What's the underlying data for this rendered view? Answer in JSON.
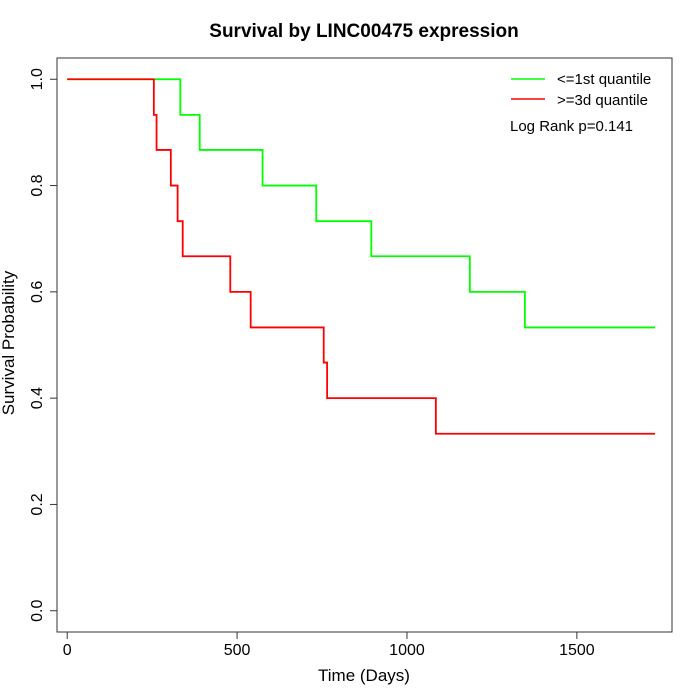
{
  "chart_data": {
    "type": "line",
    "title": "Survival by LINC00475 expression",
    "xlabel": "Time (Days)",
    "ylabel": "Survival Probability",
    "xlim": [
      -30,
      1780
    ],
    "ylim": [
      -0.04,
      1.04
    ],
    "x_ticks": [
      0,
      500,
      1000,
      1500
    ],
    "y_ticks": [
      0.0,
      0.2,
      0.4,
      0.6,
      0.8,
      1.0
    ],
    "x_tick_labels": [
      "0",
      "500",
      "1000",
      "1500"
    ],
    "y_tick_labels": [
      "0.0",
      "0.2",
      "0.4",
      "0.6",
      "0.8",
      "1.0"
    ],
    "grid": false,
    "legend_position": "top-right",
    "annotation": "Log Rank p=0.141",
    "series": [
      {
        "name": "<=1st quantile",
        "color": "#00ff00",
        "step_points": [
          [
            0,
            1.0
          ],
          [
            333,
            0.933
          ],
          [
            390,
            0.867
          ],
          [
            575,
            0.8
          ],
          [
            733,
            0.733
          ],
          [
            895,
            0.667
          ],
          [
            1185,
            0.6
          ],
          [
            1347,
            0.533
          ],
          [
            1730,
            0.533
          ]
        ]
      },
      {
        "name": ">=3d quantile",
        "color": "#ff0000",
        "step_points": [
          [
            0,
            1.0
          ],
          [
            255,
            0.933
          ],
          [
            263,
            0.867
          ],
          [
            305,
            0.8
          ],
          [
            325,
            0.733
          ],
          [
            340,
            0.667
          ],
          [
            480,
            0.6
          ],
          [
            540,
            0.533
          ],
          [
            755,
            0.467
          ],
          [
            765,
            0.4
          ],
          [
            1085,
            0.333
          ],
          [
            1730,
            0.333
          ]
        ]
      }
    ]
  }
}
